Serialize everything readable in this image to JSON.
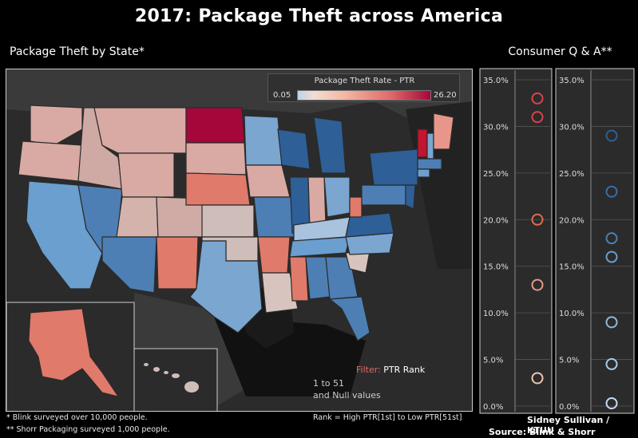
{
  "title": "2017: Package Theft across America",
  "map_section": {
    "title": "Package Theft by State*",
    "legend": {
      "title": "Package Theft Rate - PTR",
      "min": "0.05",
      "max": "26.20"
    },
    "filter": {
      "label_key": "Filter:",
      "label_value": "PTR Rank",
      "range_line1": "1 to 51",
      "range_line2": "and Null values"
    }
  },
  "qa_section": {
    "title": "Consumer Q & A**"
  },
  "footer": {
    "note1": "* Blink surveyed over 10,000 people.",
    "note2": "** Shorr Packaging surveyed 1,000 people.",
    "rank_note": "Rank = High PTR[1st] to Low PTR[51st]",
    "credit": "Sidney Sullivan / KTUU",
    "source": "Source: Blink & Shorr Packaging"
  },
  "colors": {
    "background": "#000000",
    "panel": "#2b2b2b",
    "high": "#a5073a",
    "mid_high": "#e06a6a",
    "mid": "#f2b8a3",
    "low": "#7aa6d0",
    "lowest": "#2e5f97",
    "red_circle": "#d9434b",
    "blue_circle": "#4d7fb5"
  },
  "chart_data": [
    {
      "type": "choropleth-map",
      "title": "Package Theft by State*",
      "measure": "Package Theft Rate - PTR",
      "range": [
        0.05,
        26.2
      ]
    },
    {
      "type": "scatter",
      "title": "Consumer Q & A**",
      "panels": [
        {
          "ylim": [
            0,
            35
          ],
          "yticks": [
            "0.0%",
            "5.0%",
            "10.0%",
            "15.0%",
            "20.0%",
            "25.0%",
            "30.0%",
            "35.0%"
          ],
          "values": [
            33,
            31,
            20,
            13,
            3
          ]
        },
        {
          "ylim": [
            0,
            35
          ],
          "yticks": [
            "0.0%",
            "5.0%",
            "10.0%",
            "15.0%",
            "20.0%",
            "25.0%",
            "30.0%",
            "35.0%"
          ],
          "values": [
            29,
            23,
            18,
            16,
            9,
            4.5,
            0.3
          ]
        }
      ]
    }
  ]
}
